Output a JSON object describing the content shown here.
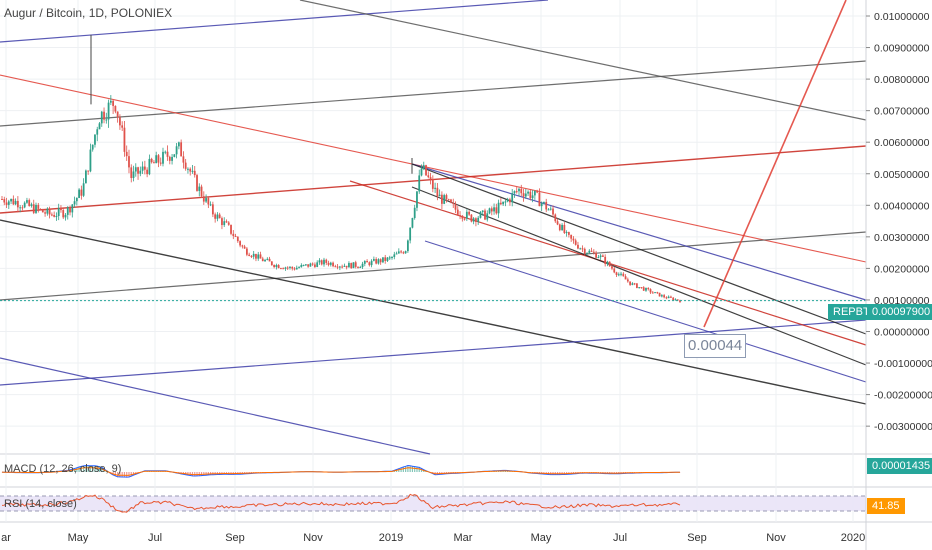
{
  "chart_data": {
    "type": "line",
    "title": "Augur / Bitcoin, 1D, POLONIEX",
    "x_ticks": [
      "ar",
      "May",
      "Jul",
      "Sep",
      "Nov",
      "2019",
      "Mar",
      "May",
      "Jul",
      "Sep",
      "Nov",
      "2020"
    ],
    "y_ticks": [
      "0.01000000",
      "0.00900000",
      "0.00800000",
      "0.00700000",
      "0.00600000",
      "0.00500000",
      "0.00400000",
      "0.00300000",
      "0.00200000",
      "0.00100000",
      "0.00000000",
      "-0.00100000",
      "-0.00200000",
      "-0.00300000"
    ],
    "ylim": [
      -0.0034,
      0.0104
    ],
    "y_scale": "linear",
    "grid": true,
    "series": [
      {
        "name": "REPBTC",
        "values": [
          0.0042,
          0.0041,
          0.0039,
          0.0037,
          0.0038,
          0.0045,
          0.0068,
          0.0073,
          0.0049,
          0.0052,
          0.0055,
          0.0058,
          0.0047,
          0.0038,
          0.0033,
          0.0026,
          0.0023,
          0.0021,
          0.002,
          0.0021,
          0.0022,
          0.0021,
          0.0021,
          0.0022,
          0.0023,
          0.0026,
          0.0052,
          0.0043,
          0.0039,
          0.0036,
          0.0037,
          0.004,
          0.0045,
          0.0043,
          0.0038,
          0.003,
          0.0026,
          0.0024,
          0.0019,
          0.0015,
          0.0013,
          0.0011,
          0.00098
        ]
      }
    ],
    "spikes": [
      {
        "label": "May",
        "high": 0.0094
      },
      {
        "label": "2019",
        "high": 0.0055
      }
    ],
    "current_price": {
      "label": "REPBTC",
      "value": "0.00097900",
      "numeric": 0.000979
    },
    "annotation": {
      "text": "0.00044",
      "value": 0.00044
    },
    "colors": {
      "candle_up": "#2e9f88",
      "candle_down": "#e0524b",
      "trend_red": "#e03c31",
      "trend_black": "#1e1e1e",
      "trend_blue": "#3d3da8",
      "trend_gray": "#555555",
      "price_tag": "#26a69a",
      "macd_tag": "#26a69a",
      "rsi_tag": "#ff9800",
      "rsi_band": "#e9e3f7"
    }
  },
  "macd": {
    "label": "MACD (12, 26, close, 9)",
    "value": "0.00001435"
  },
  "rsi": {
    "label": "RSI (14, close)",
    "value": "41.85"
  }
}
